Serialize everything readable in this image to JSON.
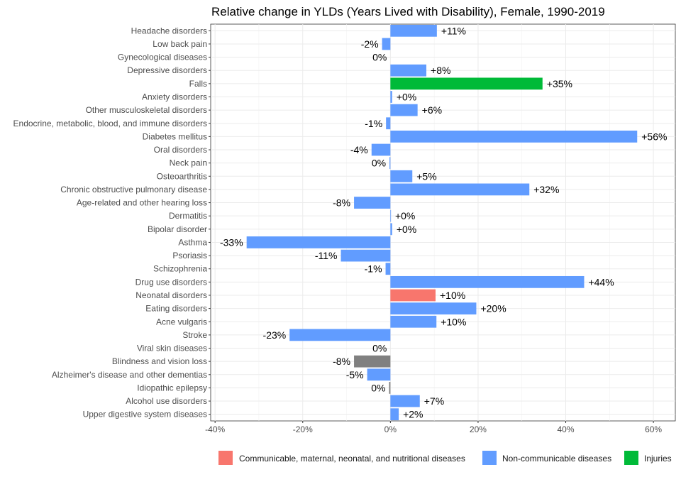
{
  "chart_data": {
    "type": "bar",
    "orientation": "horizontal",
    "title": "Relative change in YLDs (Years Lived with Disability), Female, 1990-2019",
    "xlim": [
      -41,
      65
    ],
    "x_ticks": [
      -40,
      -20,
      0,
      20,
      40,
      60
    ],
    "x_tick_labels": [
      "-40%",
      "-20%",
      "0%",
      "20%",
      "40%",
      "60%"
    ],
    "grid": true,
    "legend_position": "bottom-right",
    "colors": {
      "Communicable, maternal, neonatal, and nutritional diseases": "#F8766D",
      "Non-communicable diseases": "#619CFF",
      "Injuries": "#00BA38",
      "Other": "#808080"
    },
    "legend": [
      "Communicable, maternal, neonatal, and nutritional diseases",
      "Non-communicable diseases",
      "Injuries"
    ],
    "bars": [
      {
        "category": "Headache disorders",
        "value": 10.6,
        "label": "+11%",
        "group": "Non-communicable diseases"
      },
      {
        "category": "Low back pain",
        "value": -1.9,
        "label": "-2%",
        "group": "Non-communicable diseases"
      },
      {
        "category": "Gynecological diseases",
        "value": 0.0,
        "label": "0%",
        "group": "Non-communicable diseases"
      },
      {
        "category": "Depressive disorders",
        "value": 8.2,
        "label": "+8%",
        "group": "Non-communicable diseases"
      },
      {
        "category": "Falls",
        "value": 34.7,
        "label": "+35%",
        "group": "Injuries"
      },
      {
        "category": "Anxiety disorders",
        "value": 0.4,
        "label": "+0%",
        "group": "Non-communicable diseases"
      },
      {
        "category": "Other musculoskeletal disorders",
        "value": 6.2,
        "label": "+6%",
        "group": "Non-communicable diseases"
      },
      {
        "category": "Endocrine, metabolic, blood, and immune disorders",
        "value": -1.0,
        "label": "-1%",
        "group": "Non-communicable diseases"
      },
      {
        "category": "Diabetes mellitus",
        "value": 56.3,
        "label": "+56%",
        "group": "Non-communicable diseases"
      },
      {
        "category": "Oral disorders",
        "value": -4.3,
        "label": "-4%",
        "group": "Non-communicable diseases"
      },
      {
        "category": "Neck pain",
        "value": -0.2,
        "label": "0%",
        "group": "Non-communicable diseases"
      },
      {
        "category": "Osteoarthritis",
        "value": 5.0,
        "label": "+5%",
        "group": "Non-communicable diseases"
      },
      {
        "category": "Chronic obstructive pulmonary disease",
        "value": 31.7,
        "label": "+32%",
        "group": "Non-communicable diseases"
      },
      {
        "category": "Age-related and other hearing loss",
        "value": -8.3,
        "label": "-8%",
        "group": "Non-communicable diseases"
      },
      {
        "category": "Dermatitis",
        "value": 0.1,
        "label": "+0%",
        "group": "Non-communicable diseases"
      },
      {
        "category": "Bipolar disorder",
        "value": 0.4,
        "label": "+0%",
        "group": "Non-communicable diseases"
      },
      {
        "category": "Asthma",
        "value": -32.8,
        "label": "-33%",
        "group": "Non-communicable diseases"
      },
      {
        "category": "Psoriasis",
        "value": -11.3,
        "label": "-11%",
        "group": "Non-communicable diseases"
      },
      {
        "category": "Schizophrenia",
        "value": -1.1,
        "label": "-1%",
        "group": "Non-communicable diseases"
      },
      {
        "category": "Drug use disorders",
        "value": 44.2,
        "label": "+44%",
        "group": "Non-communicable diseases"
      },
      {
        "category": "Neonatal disorders",
        "value": 10.3,
        "label": "+10%",
        "group": "Communicable, maternal, neonatal, and nutritional diseases"
      },
      {
        "category": "Eating disorders",
        "value": 19.6,
        "label": "+20%",
        "group": "Non-communicable diseases"
      },
      {
        "category": "Acne vulgaris",
        "value": 10.5,
        "label": "+10%",
        "group": "Non-communicable diseases"
      },
      {
        "category": "Stroke",
        "value": -23.0,
        "label": "-23%",
        "group": "Non-communicable diseases"
      },
      {
        "category": "Viral skin diseases",
        "value": 0.0,
        "label": "0%",
        "group": "Non-communicable diseases"
      },
      {
        "category": "Blindness and vision loss",
        "value": -8.3,
        "label": "-8%",
        "group": "Other"
      },
      {
        "category": "Alzheimer's disease and other dementias",
        "value": -5.3,
        "label": "-5%",
        "group": "Non-communicable diseases"
      },
      {
        "category": "Idiopathic epilepsy",
        "value": -0.3,
        "label": "0%",
        "group": "Other"
      },
      {
        "category": "Alcohol use disorders",
        "value": 6.7,
        "label": "+7%",
        "group": "Non-communicable diseases"
      },
      {
        "category": "Upper digestive system diseases",
        "value": 1.9,
        "label": "+2%",
        "group": "Non-communicable diseases"
      }
    ]
  }
}
